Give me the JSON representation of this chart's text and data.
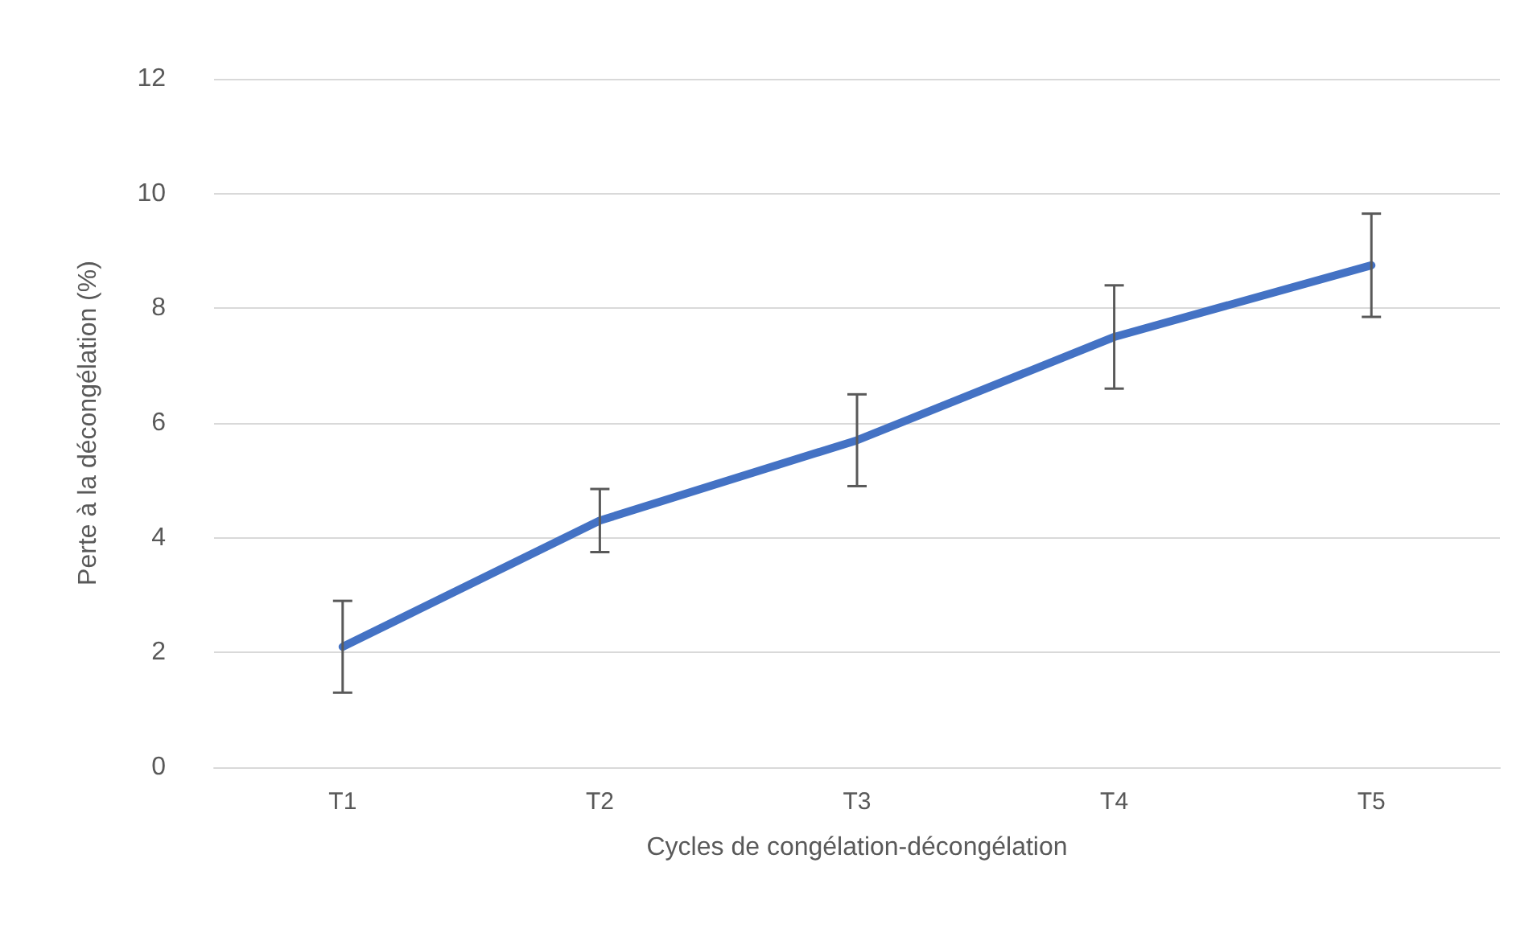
{
  "chart_data": {
    "type": "line",
    "xlabel": "Cycles de congélation-décongélation",
    "ylabel": "Perte à la décongélation (%)",
    "categories": [
      "T1",
      "T2",
      "T3",
      "T4",
      "T5"
    ],
    "series": [
      {
        "color": "#4472c4",
        "values": [
          2.1,
          4.3,
          5.7,
          7.5,
          8.75
        ],
        "errors": [
          0.8,
          0.55,
          0.8,
          0.9,
          0.9
        ]
      }
    ],
    "ylim": [
      0,
      12
    ],
    "yticks": [
      0,
      2,
      4,
      6,
      8,
      10,
      12
    ],
    "grid": "y",
    "marker": "none",
    "line_style": "solid"
  }
}
